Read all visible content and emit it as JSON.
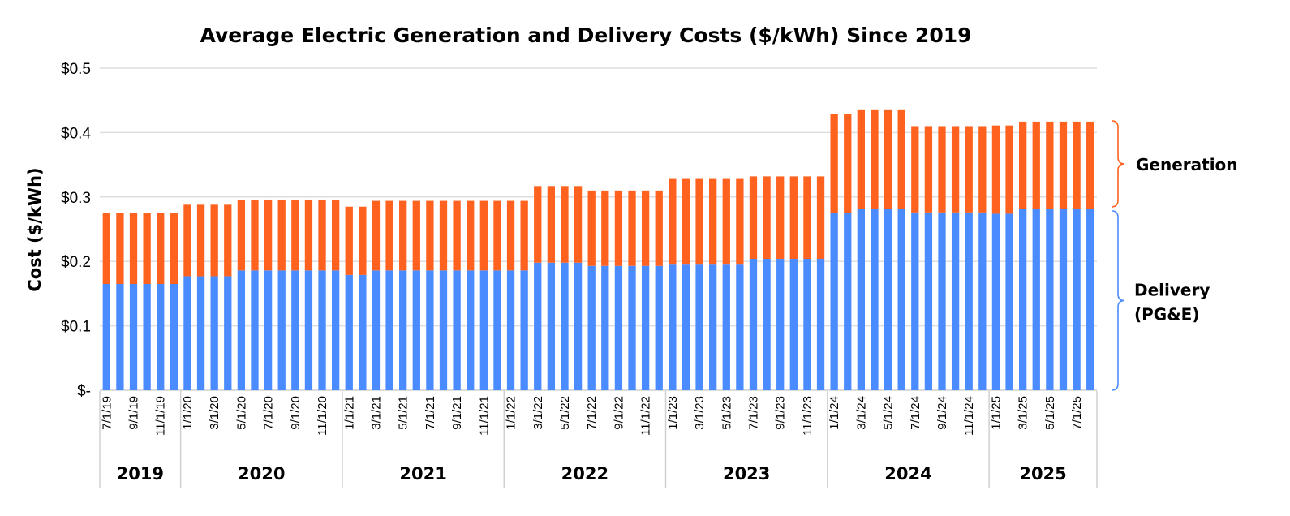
{
  "chart_data": {
    "type": "bar",
    "stacked": true,
    "title": "Average Electric Generation and Delivery Costs ($/kWh) Since 2019",
    "xlabel": "",
    "ylabel": "Cost ($/kWh)",
    "ylim": [
      0,
      0.5
    ],
    "y_tick_labels": [
      "$-",
      "$0.1",
      "$0.2",
      "$0.3",
      "$0.4",
      "$0.5"
    ],
    "grid": true,
    "x_tick_labels": [
      "7/1/19",
      "9/1/19",
      "11/1/19",
      "1/1/20",
      "3/1/20",
      "5/1/20",
      "7/1/20",
      "9/1/20",
      "11/1/20",
      "1/1/21",
      "3/1/21",
      "5/1/21",
      "7/1/21",
      "9/1/21",
      "11/1/21",
      "1/1/22",
      "3/1/22",
      "5/1/22",
      "7/1/22",
      "9/1/22",
      "11/1/22",
      "1/1/23",
      "3/1/23",
      "5/1/23",
      "7/1/23",
      "9/1/23",
      "11/1/23",
      "1/1/24",
      "3/1/24",
      "5/1/24",
      "7/1/24",
      "9/1/24",
      "11/1/24",
      "1/1/25",
      "3/1/25",
      "5/1/25",
      "7/1/25"
    ],
    "year_labels": [
      "2019",
      "2020",
      "2021",
      "2022",
      "2023",
      "2024",
      "2025"
    ],
    "series": [
      {
        "name": "Delivery (PG&E)",
        "color": "#4A8BFF",
        "annotation": [
          "Delivery",
          "(PG&E)"
        ],
        "values": [
          0.165,
          0.165,
          0.165,
          0.165,
          0.165,
          0.165,
          0.177,
          0.177,
          0.177,
          0.177,
          0.186,
          0.186,
          0.186,
          0.186,
          0.186,
          0.186,
          0.186,
          0.186,
          0.179,
          0.179,
          0.186,
          0.186,
          0.186,
          0.186,
          0.186,
          0.186,
          0.186,
          0.186,
          0.186,
          0.186,
          0.186,
          0.186,
          0.198,
          0.198,
          0.198,
          0.198,
          0.193,
          0.193,
          0.193,
          0.193,
          0.193,
          0.193,
          0.195,
          0.195,
          0.195,
          0.195,
          0.195,
          0.195,
          0.204,
          0.204,
          0.204,
          0.204,
          0.204,
          0.204,
          0.275,
          0.275,
          0.282,
          0.282,
          0.282,
          0.282,
          0.276,
          0.276,
          0.276,
          0.276,
          0.276,
          0.276,
          0.274,
          0.274,
          0.281,
          0.281,
          0.281,
          0.281,
          0.281,
          0.281
        ]
      },
      {
        "name": "Generation",
        "color": "#FF621F",
        "annotation": [
          "Generation"
        ],
        "values": [
          0.11,
          0.11,
          0.11,
          0.11,
          0.11,
          0.11,
          0.111,
          0.111,
          0.111,
          0.111,
          0.11,
          0.11,
          0.11,
          0.11,
          0.11,
          0.11,
          0.11,
          0.11,
          0.106,
          0.106,
          0.108,
          0.108,
          0.108,
          0.108,
          0.108,
          0.108,
          0.108,
          0.108,
          0.108,
          0.108,
          0.108,
          0.108,
          0.119,
          0.119,
          0.119,
          0.119,
          0.117,
          0.117,
          0.117,
          0.117,
          0.117,
          0.117,
          0.133,
          0.133,
          0.133,
          0.133,
          0.133,
          0.133,
          0.128,
          0.128,
          0.128,
          0.128,
          0.128,
          0.128,
          0.154,
          0.154,
          0.154,
          0.154,
          0.154,
          0.154,
          0.134,
          0.134,
          0.134,
          0.134,
          0.134,
          0.134,
          0.137,
          0.137,
          0.136,
          0.136,
          0.136,
          0.136,
          0.136,
          0.136
        ]
      }
    ]
  }
}
